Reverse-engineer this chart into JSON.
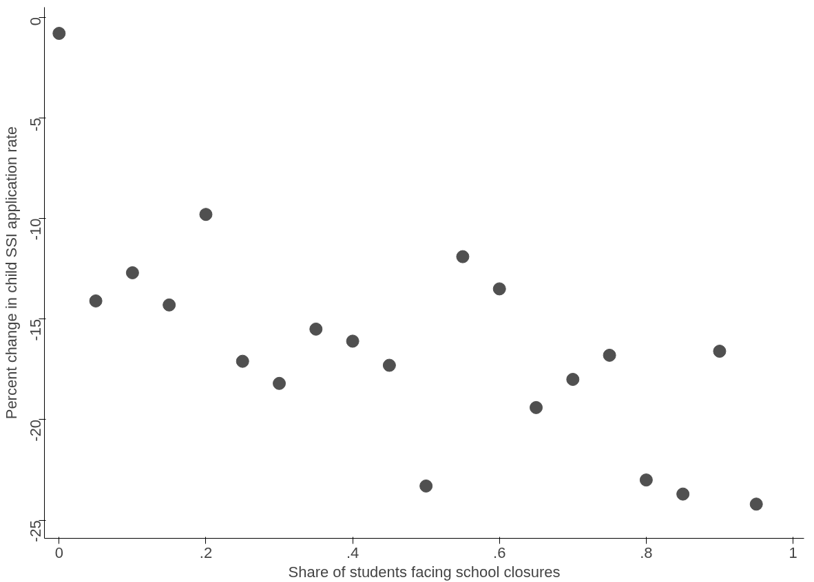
{
  "chart_data": {
    "type": "scatter",
    "xlabel": "Share of students facing school closures",
    "ylabel": "Percent change in child SSI application rate",
    "x": [
      0,
      0.05,
      0.1,
      0.15,
      0.2,
      0.25,
      0.3,
      0.35,
      0.4,
      0.45,
      0.5,
      0.55,
      0.6,
      0.65,
      0.7,
      0.75,
      0.8,
      0.85,
      0.9,
      0.95
    ],
    "series": [
      {
        "color": "#505050",
        "values": [
          -0.8,
          -14.1,
          -12.7,
          -14.3,
          -9.8,
          -17.1,
          -18.2,
          -15.5,
          -16.1,
          -17.3,
          -23.3,
          -11.9,
          -13.5,
          -19.4,
          -18.0,
          -16.8,
          -23.0,
          -23.7,
          -16.6,
          -24.2
        ]
      }
    ],
    "xlim": [
      -0.02,
      1.015
    ],
    "ylim": [
      -25.9,
      0.5
    ],
    "xticks": [
      0,
      {
        "value": 0.2,
        "label": ".2"
      },
      {
        "value": 0.4,
        "label": ".4"
      },
      {
        "value": 0.6,
        "label": ".6"
      },
      {
        "value": 0.8,
        "label": ".8"
      },
      1
    ],
    "yticks": [
      0,
      -5,
      -10,
      -15,
      -20,
      -25
    ],
    "grid": false,
    "marker": "circle"
  }
}
